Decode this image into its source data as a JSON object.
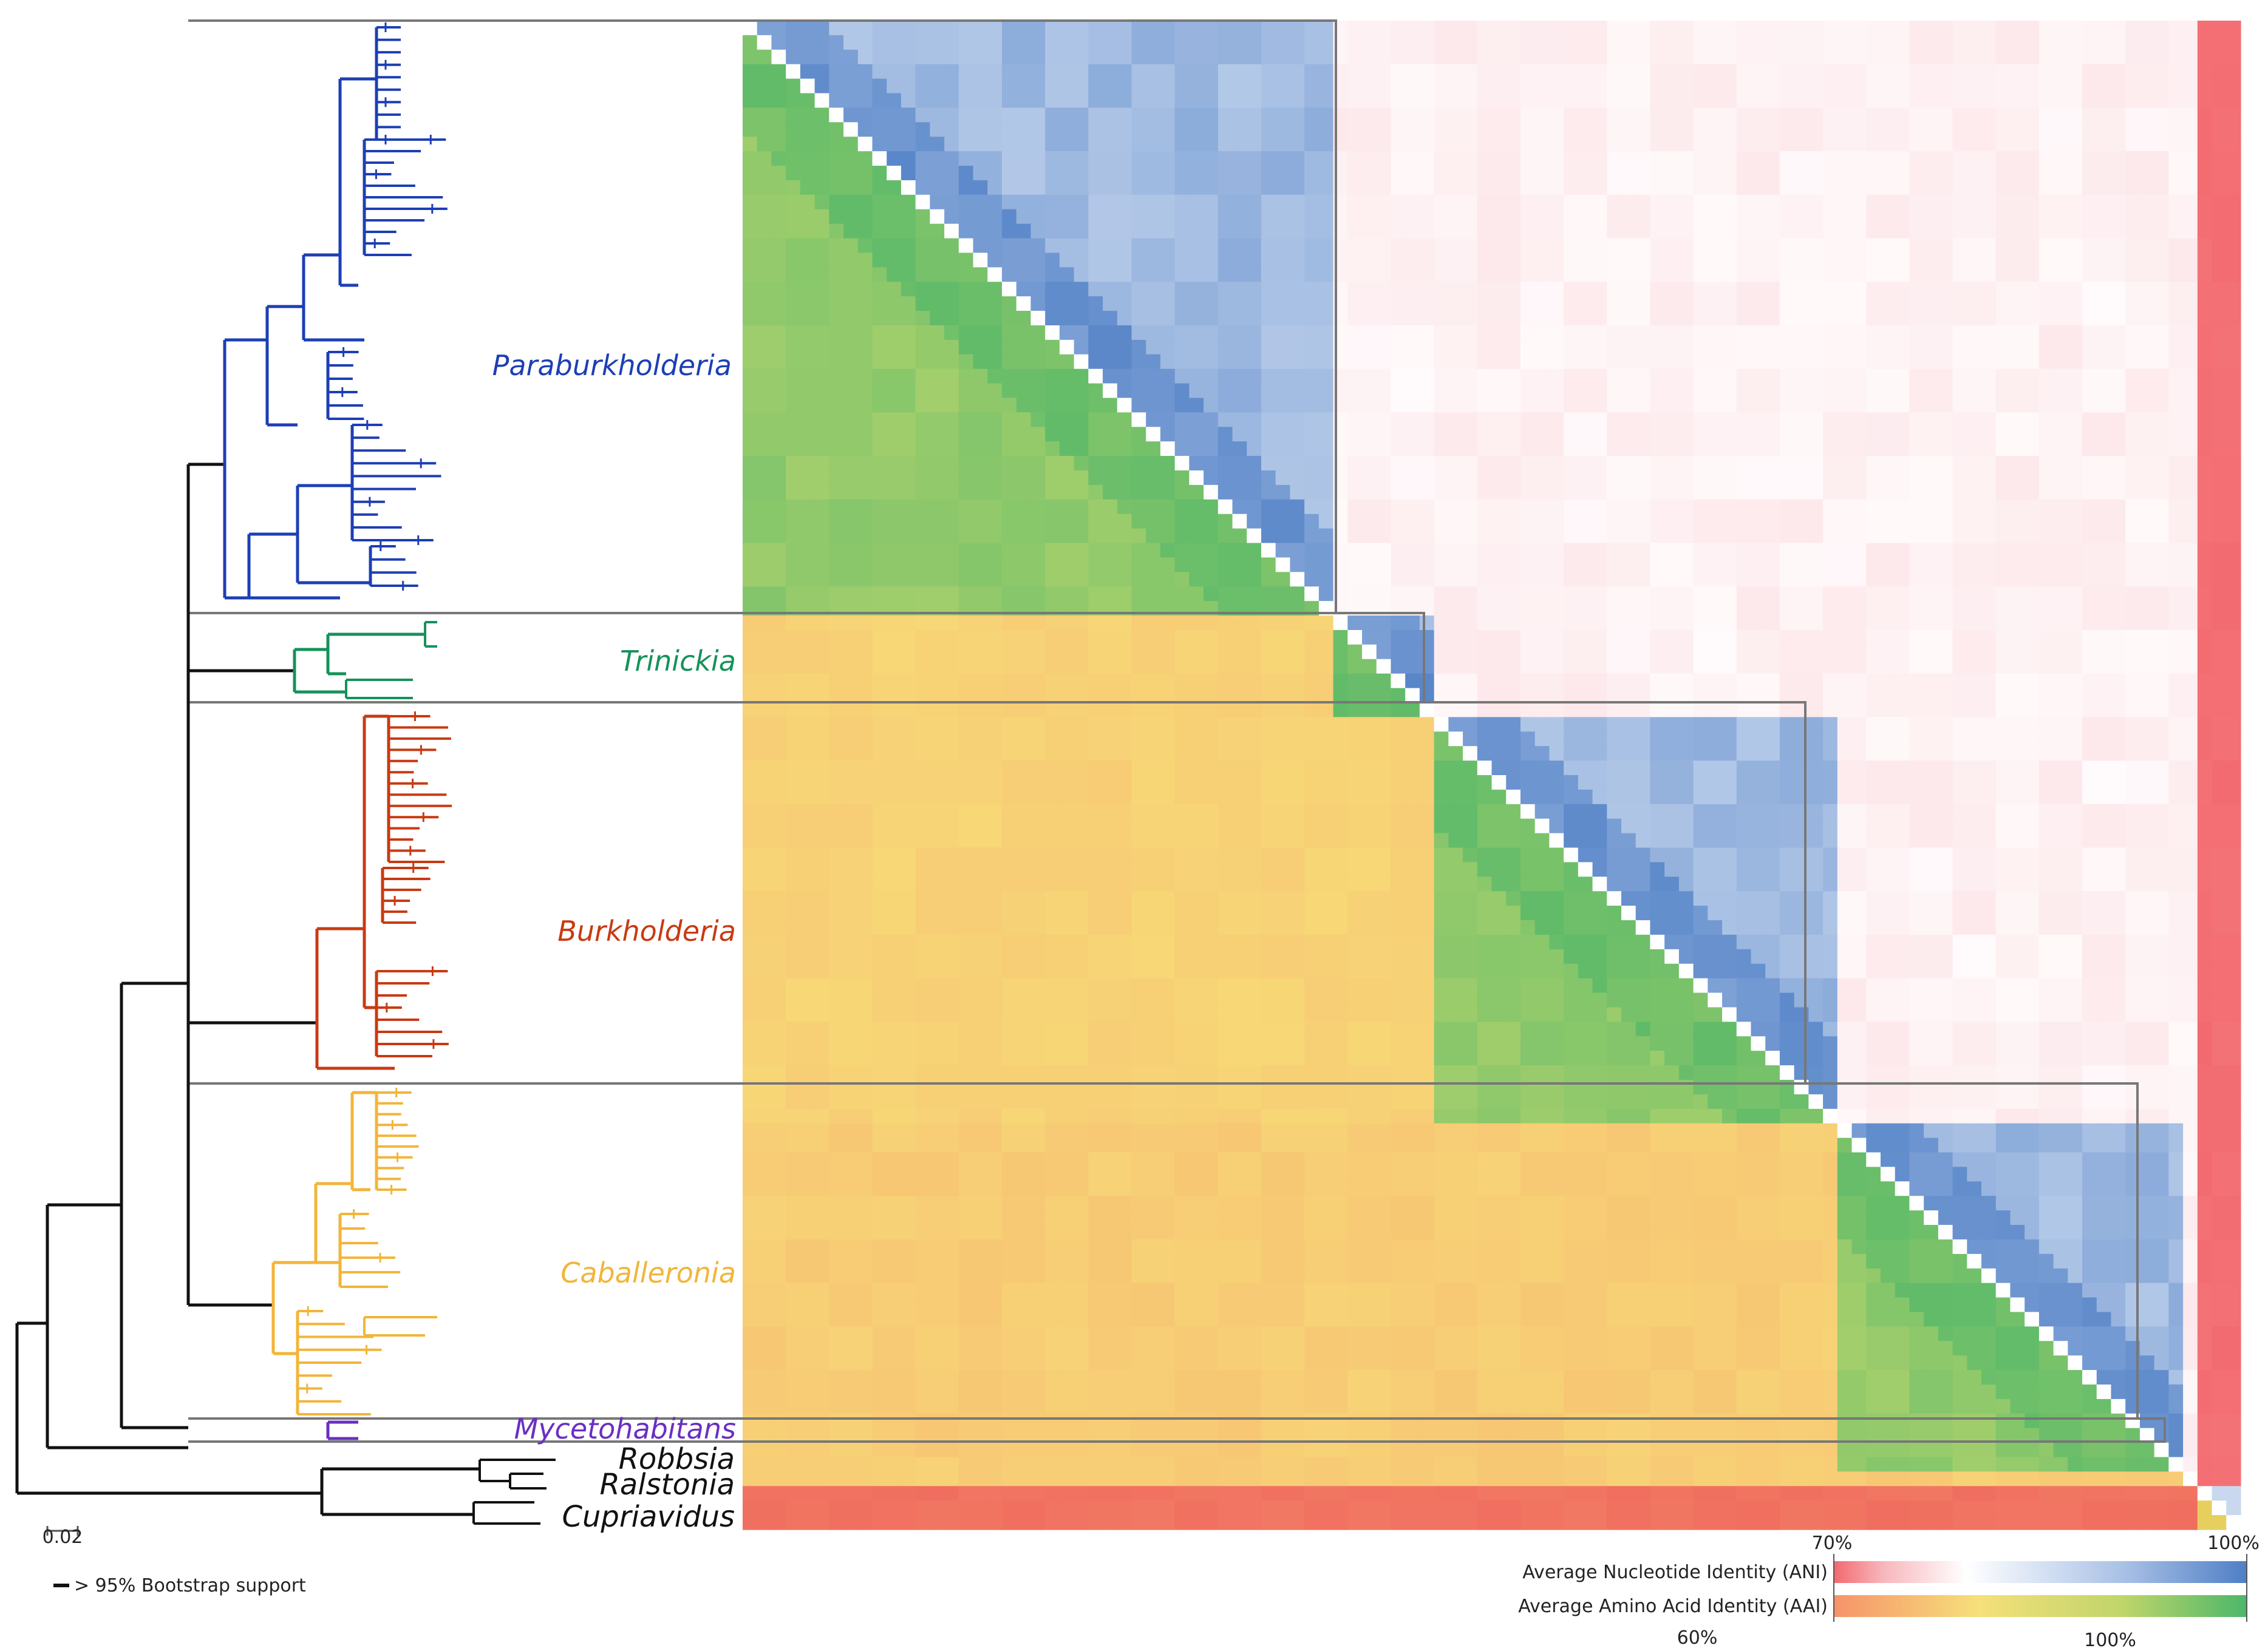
{
  "figure": {
    "clades": [
      {
        "name": "Paraburkholderia",
        "color": "#1d3fb5"
      },
      {
        "name": "Trinickia",
        "color": "#15925a"
      },
      {
        "name": "Burkholderia",
        "color": "#c83a12"
      },
      {
        "name": "Caballeronia",
        "color": "#f2b53a"
      },
      {
        "name": "Mycetohabitans",
        "color": "#6a2fc2"
      }
    ],
    "outgroups": [
      "Robbsia",
      "Ralstonia",
      "Cupriavidus"
    ],
    "scale_bar_label": "0.02",
    "bootstrap_note": "> 95% Bootstrap support",
    "legend": {
      "ani_label": "Average Nucleotide Identity (ANI)",
      "aai_label": "Average Amino Acid Identity (AAI)",
      "ani_min_label": "70%",
      "ani_max_label": "100%",
      "aai_min_label": "60%",
      "aai_max_label": "100%",
      "ani_colors": [
        "#f26a6f",
        "#ffffff",
        "#4f7fc6"
      ],
      "aai_colors": [
        "#f6936a",
        "#f6e07a",
        "#4cb76a"
      ]
    }
  }
}
